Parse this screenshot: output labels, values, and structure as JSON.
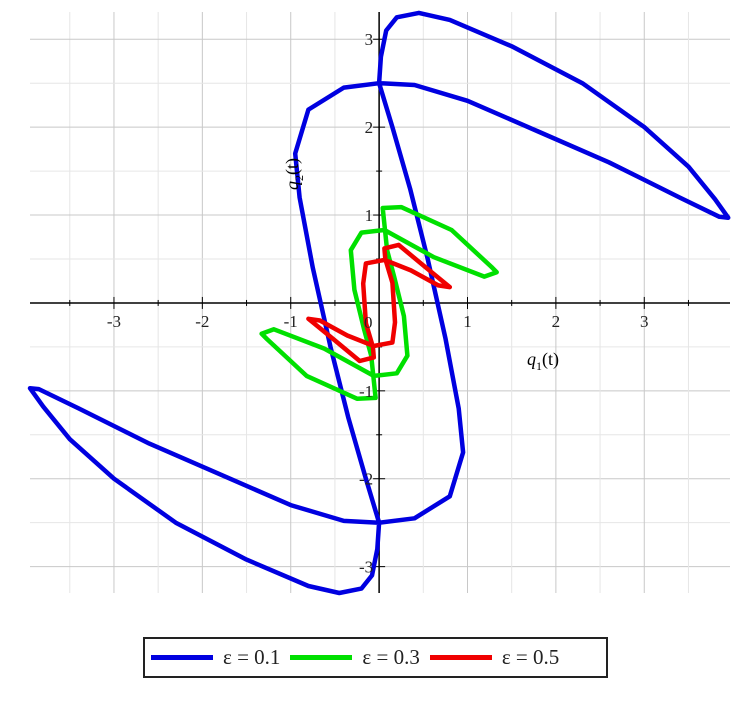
{
  "chart_data": {
    "type": "line",
    "title": "",
    "xlabel": "q1(t)",
    "ylabel": "q2(t)",
    "xlabel_main": "q",
    "xlabel_sub": "1",
    "xlabel_arg": "(t)",
    "ylabel_main": "q",
    "ylabel_sub": "2",
    "ylabel_arg": "(t)",
    "xlim": [
      -3.95,
      3.97
    ],
    "ylim": [
      -3.3,
      3.31
    ],
    "grid": true,
    "minor_grid": true,
    "xticks": [
      -3,
      -2,
      -1,
      1,
      2,
      3
    ],
    "yticks": [
      -3,
      -2,
      -1,
      1,
      2,
      3
    ],
    "xtick_labels": [
      "-3",
      "-2",
      "-1",
      "1",
      "2",
      "3"
    ],
    "ytick_labels": [
      "-3",
      "-2",
      "-1",
      "1",
      "2",
      "3"
    ],
    "origin_label": "0",
    "legend_position": "bottom",
    "series": [
      {
        "name": "ε = 0.1",
        "color": "#0000e0",
        "points": [
          [
            0,
            2.5
          ],
          [
            0.02,
            2.8
          ],
          [
            0.08,
            3.1
          ],
          [
            0.2,
            3.25
          ],
          [
            0.45,
            3.3
          ],
          [
            0.8,
            3.22
          ],
          [
            1.5,
            2.92
          ],
          [
            2.3,
            2.5
          ],
          [
            3.0,
            2.0
          ],
          [
            3.5,
            1.55
          ],
          [
            3.8,
            1.18
          ],
          [
            3.95,
            0.97
          ],
          [
            3.85,
            0.98
          ],
          [
            3.4,
            1.2
          ],
          [
            2.6,
            1.6
          ],
          [
            1.8,
            1.95
          ],
          [
            1.0,
            2.3
          ],
          [
            0.4,
            2.48
          ],
          [
            0,
            2.5
          ],
          [
            -0.4,
            2.45
          ],
          [
            -0.8,
            2.2
          ],
          [
            -0.95,
            1.7
          ],
          [
            -0.9,
            1.2
          ],
          [
            -0.75,
            0.4
          ],
          [
            -0.55,
            -0.5
          ],
          [
            -0.35,
            -1.3
          ],
          [
            -0.15,
            -2.0
          ],
          [
            0,
            -2.5
          ],
          [
            -0.02,
            -2.8
          ],
          [
            -0.08,
            -3.1
          ],
          [
            -0.2,
            -3.25
          ],
          [
            -0.45,
            -3.3
          ],
          [
            -0.8,
            -3.22
          ],
          [
            -1.5,
            -2.92
          ],
          [
            -2.3,
            -2.5
          ],
          [
            -3.0,
            -2.0
          ],
          [
            -3.5,
            -1.55
          ],
          [
            -3.8,
            -1.18
          ],
          [
            -3.95,
            -0.97
          ],
          [
            -3.85,
            -0.98
          ],
          [
            -3.4,
            -1.2
          ],
          [
            -2.6,
            -1.6
          ],
          [
            -1.8,
            -1.95
          ],
          [
            -1.0,
            -2.3
          ],
          [
            -0.4,
            -2.48
          ],
          [
            0,
            -2.5
          ],
          [
            0.4,
            -2.45
          ],
          [
            0.8,
            -2.2
          ],
          [
            0.95,
            -1.7
          ],
          [
            0.9,
            -1.2
          ],
          [
            0.75,
            -0.4
          ],
          [
            0.55,
            0.5
          ],
          [
            0.35,
            1.3
          ],
          [
            0.15,
            2.0
          ],
          [
            0,
            2.5
          ]
        ]
      },
      {
        "name": "ε = 0.3",
        "color": "#00e000",
        "points": [
          [
            0.04,
            1.08
          ],
          [
            0.25,
            1.09
          ],
          [
            0.82,
            0.83
          ],
          [
            1.27,
            0.41
          ],
          [
            1.33,
            0.35
          ],
          [
            1.19,
            0.3
          ],
          [
            0.62,
            0.52
          ],
          [
            0.06,
            0.83
          ],
          [
            -0.2,
            0.8
          ],
          [
            -0.32,
            0.6
          ],
          [
            -0.28,
            0.15
          ],
          [
            -0.17,
            -0.3
          ],
          [
            -0.09,
            -0.6
          ],
          [
            -0.04,
            -1.08
          ],
          [
            -0.25,
            -1.09
          ],
          [
            -0.82,
            -0.83
          ],
          [
            -1.27,
            -0.41
          ],
          [
            -1.33,
            -0.35
          ],
          [
            -1.19,
            -0.3
          ],
          [
            -0.62,
            -0.52
          ],
          [
            -0.06,
            -0.83
          ],
          [
            0.2,
            -0.8
          ],
          [
            0.32,
            -0.6
          ],
          [
            0.28,
            -0.15
          ],
          [
            0.17,
            0.3
          ],
          [
            0.09,
            0.6
          ],
          [
            0.04,
            1.08
          ]
        ]
      },
      {
        "name": "ε = 0.5",
        "color": "#f00000",
        "points": [
          [
            0.06,
            0.62
          ],
          [
            0.22,
            0.66
          ],
          [
            0.52,
            0.41
          ],
          [
            0.8,
            0.18
          ],
          [
            0.67,
            0.2
          ],
          [
            0.36,
            0.37
          ],
          [
            0.06,
            0.49
          ],
          [
            -0.15,
            0.45
          ],
          [
            -0.18,
            0.22
          ],
          [
            -0.15,
            -0.23
          ],
          [
            -0.07,
            -0.5
          ],
          [
            -0.06,
            -0.62
          ],
          [
            -0.22,
            -0.66
          ],
          [
            -0.52,
            -0.41
          ],
          [
            -0.8,
            -0.18
          ],
          [
            -0.67,
            -0.2
          ],
          [
            -0.36,
            -0.37
          ],
          [
            -0.06,
            -0.49
          ],
          [
            0.15,
            -0.45
          ],
          [
            0.18,
            -0.22
          ],
          [
            0.15,
            0.23
          ],
          [
            0.07,
            0.5
          ],
          [
            0.06,
            0.62
          ]
        ]
      }
    ]
  }
}
